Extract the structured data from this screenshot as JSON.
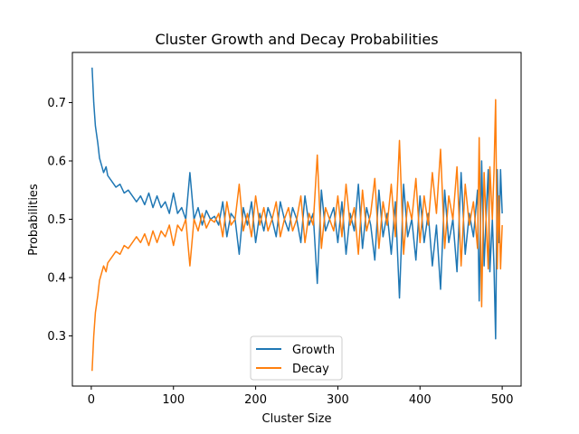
{
  "chart_data": {
    "type": "line",
    "title": "Cluster Growth and Decay Probabilities",
    "xlabel": "Cluster Size",
    "ylabel": "Probabilities",
    "xlim": [
      -23,
      523
    ],
    "ylim": [
      0.214,
      0.786
    ],
    "xticks": [
      0,
      100,
      200,
      300,
      400,
      500
    ],
    "yticks": [
      0.3,
      0.4,
      0.5,
      0.6,
      0.7
    ],
    "ytick_labels": [
      "0.3",
      "0.4",
      "0.5",
      "0.6",
      "0.7"
    ],
    "grid": false,
    "legend_position": "lower center",
    "series": [
      {
        "name": "Growth",
        "color": "#1f77b4",
        "x": [
          1,
          3,
          5,
          8,
          10,
          13,
          15,
          18,
          20,
          25,
          30,
          35,
          40,
          45,
          50,
          55,
          60,
          65,
          70,
          75,
          80,
          85,
          90,
          95,
          100,
          105,
          110,
          115,
          120,
          125,
          130,
          135,
          140,
          145,
          150,
          155,
          160,
          165,
          170,
          175,
          180,
          185,
          190,
          195,
          200,
          205,
          210,
          215,
          220,
          225,
          230,
          235,
          240,
          245,
          250,
          255,
          260,
          265,
          270,
          275,
          280,
          285,
          290,
          295,
          300,
          305,
          310,
          315,
          320,
          325,
          330,
          335,
          340,
          345,
          350,
          355,
          360,
          365,
          370,
          375,
          380,
          385,
          390,
          395,
          400,
          405,
          410,
          415,
          420,
          425,
          430,
          435,
          440,
          445,
          450,
          455,
          460,
          465,
          470,
          472,
          475,
          478,
          480,
          483,
          485,
          488,
          490,
          492,
          494,
          496,
          498,
          500
        ],
        "y": [
          0.76,
          0.7,
          0.66,
          0.63,
          0.605,
          0.59,
          0.58,
          0.59,
          0.575,
          0.565,
          0.555,
          0.56,
          0.545,
          0.55,
          0.54,
          0.53,
          0.54,
          0.525,
          0.545,
          0.52,
          0.54,
          0.52,
          0.53,
          0.51,
          0.545,
          0.51,
          0.52,
          0.5,
          0.58,
          0.5,
          0.52,
          0.49,
          0.515,
          0.5,
          0.505,
          0.49,
          0.53,
          0.47,
          0.51,
          0.5,
          0.44,
          0.52,
          0.49,
          0.53,
          0.46,
          0.51,
          0.48,
          0.52,
          0.5,
          0.47,
          0.53,
          0.5,
          0.48,
          0.52,
          0.5,
          0.46,
          0.54,
          0.49,
          0.51,
          0.39,
          0.55,
          0.48,
          0.5,
          0.52,
          0.46,
          0.53,
          0.44,
          0.51,
          0.48,
          0.56,
          0.45,
          0.52,
          0.49,
          0.43,
          0.55,
          0.47,
          0.51,
          0.44,
          0.53,
          0.365,
          0.56,
          0.47,
          0.5,
          0.43,
          0.54,
          0.46,
          0.51,
          0.42,
          0.49,
          0.38,
          0.55,
          0.46,
          0.5,
          0.41,
          0.58,
          0.44,
          0.51,
          0.47,
          0.55,
          0.36,
          0.6,
          0.42,
          0.49,
          0.585,
          0.41,
          0.5,
          0.42,
          0.295,
          0.585,
          0.46,
          0.585,
          0.51
        ]
      },
      {
        "name": "Decay",
        "color": "#ff7f0e",
        "x": [
          1,
          3,
          5,
          8,
          10,
          13,
          15,
          18,
          20,
          25,
          30,
          35,
          40,
          45,
          50,
          55,
          60,
          65,
          70,
          75,
          80,
          85,
          90,
          95,
          100,
          105,
          110,
          115,
          120,
          125,
          130,
          135,
          140,
          145,
          150,
          155,
          160,
          165,
          170,
          175,
          180,
          185,
          190,
          195,
          200,
          205,
          210,
          215,
          220,
          225,
          230,
          235,
          240,
          245,
          250,
          255,
          260,
          265,
          270,
          275,
          280,
          285,
          290,
          295,
          300,
          305,
          310,
          315,
          320,
          325,
          330,
          335,
          340,
          345,
          350,
          355,
          360,
          365,
          370,
          375,
          380,
          385,
          390,
          395,
          400,
          405,
          410,
          415,
          420,
          425,
          430,
          435,
          440,
          445,
          450,
          455,
          460,
          465,
          470,
          472,
          475,
          478,
          480,
          483,
          485,
          488,
          490,
          492,
          494,
          496,
          498,
          500
        ],
        "y": [
          0.24,
          0.3,
          0.34,
          0.37,
          0.395,
          0.41,
          0.42,
          0.41,
          0.425,
          0.435,
          0.445,
          0.44,
          0.455,
          0.45,
          0.46,
          0.47,
          0.46,
          0.475,
          0.455,
          0.48,
          0.46,
          0.48,
          0.47,
          0.49,
          0.455,
          0.49,
          0.48,
          0.5,
          0.42,
          0.5,
          0.48,
          0.51,
          0.485,
          0.5,
          0.495,
          0.51,
          0.47,
          0.53,
          0.49,
          0.5,
          0.56,
          0.48,
          0.51,
          0.47,
          0.54,
          0.49,
          0.52,
          0.48,
          0.5,
          0.53,
          0.47,
          0.5,
          0.52,
          0.48,
          0.5,
          0.54,
          0.46,
          0.51,
          0.49,
          0.61,
          0.45,
          0.52,
          0.5,
          0.48,
          0.54,
          0.47,
          0.56,
          0.49,
          0.52,
          0.44,
          0.55,
          0.48,
          0.51,
          0.57,
          0.45,
          0.53,
          0.49,
          0.56,
          0.47,
          0.635,
          0.44,
          0.53,
          0.5,
          0.57,
          0.46,
          0.54,
          0.49,
          0.58,
          0.51,
          0.62,
          0.45,
          0.54,
          0.5,
          0.59,
          0.42,
          0.56,
          0.49,
          0.53,
          0.45,
          0.64,
          0.35,
          0.58,
          0.51,
          0.415,
          0.59,
          0.5,
          0.58,
          0.705,
          0.415,
          0.54,
          0.415,
          0.49
        ]
      }
    ]
  }
}
